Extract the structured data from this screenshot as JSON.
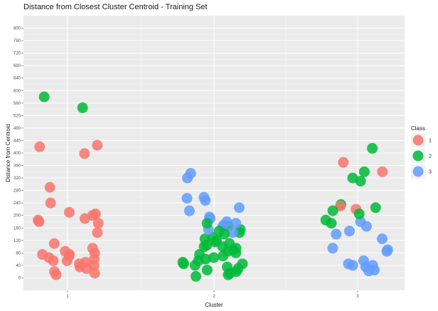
{
  "chart_data": {
    "type": "scatter",
    "title": "Distance from Closest Cluster Centroid - Training Set",
    "xlabel": "Cluster",
    "ylabel": "Distance from Centroid",
    "categories": [
      "1",
      "2",
      "3"
    ],
    "ylim": [
      -40,
      840
    ],
    "yticks": [
      0,
      40,
      80,
      120,
      160,
      200,
      240,
      280,
      320,
      360,
      400,
      440,
      480,
      520,
      560,
      600,
      640,
      680,
      720,
      760,
      800
    ],
    "grid": true,
    "legend": {
      "title": "Class",
      "position": "right"
    },
    "series": [
      {
        "name": "1",
        "color": "#F8766D",
        "points": [
          {
            "x": 1,
            "y": 425
          },
          {
            "x": 1,
            "y": 420
          },
          {
            "x": 1,
            "y": 398
          },
          {
            "x": 1,
            "y": 290
          },
          {
            "x": 1,
            "y": 240
          },
          {
            "x": 1,
            "y": 210
          },
          {
            "x": 1,
            "y": 200
          },
          {
            "x": 1,
            "y": 205
          },
          {
            "x": 1,
            "y": 190
          },
          {
            "x": 1,
            "y": 185
          },
          {
            "x": 1,
            "y": 180
          },
          {
            "x": 1,
            "y": 175
          },
          {
            "x": 1,
            "y": 145
          },
          {
            "x": 1,
            "y": 110
          },
          {
            "x": 1,
            "y": 95
          },
          {
            "x": 1,
            "y": 85
          },
          {
            "x": 1,
            "y": 80
          },
          {
            "x": 1,
            "y": 75
          },
          {
            "x": 1,
            "y": 75
          },
          {
            "x": 1,
            "y": 70
          },
          {
            "x": 1,
            "y": 65
          },
          {
            "x": 1,
            "y": 60
          },
          {
            "x": 1,
            "y": 55
          },
          {
            "x": 1,
            "y": 55
          },
          {
            "x": 1,
            "y": 50
          },
          {
            "x": 1,
            "y": 45
          },
          {
            "x": 1,
            "y": 40
          },
          {
            "x": 1,
            "y": 35
          },
          {
            "x": 1,
            "y": 30
          },
          {
            "x": 1,
            "y": 20
          },
          {
            "x": 1,
            "y": 15
          },
          {
            "x": 1,
            "y": 10
          },
          {
            "x": 3,
            "y": 370
          },
          {
            "x": 3,
            "y": 340
          },
          {
            "x": 3,
            "y": 230
          },
          {
            "x": 3,
            "y": 220
          }
        ]
      },
      {
        "name": "2",
        "color": "#00BA38",
        "points": [
          {
            "x": 1,
            "y": 580
          },
          {
            "x": 1,
            "y": 545
          },
          {
            "x": 2,
            "y": 175
          },
          {
            "x": 2,
            "y": 165
          },
          {
            "x": 2,
            "y": 155
          },
          {
            "x": 2,
            "y": 150
          },
          {
            "x": 2,
            "y": 145
          },
          {
            "x": 2,
            "y": 140
          },
          {
            "x": 2,
            "y": 130
          },
          {
            "x": 2,
            "y": 125
          },
          {
            "x": 2,
            "y": 120
          },
          {
            "x": 2,
            "y": 115
          },
          {
            "x": 2,
            "y": 110
          },
          {
            "x": 2,
            "y": 105
          },
          {
            "x": 2,
            "y": 100
          },
          {
            "x": 2,
            "y": 100
          },
          {
            "x": 2,
            "y": 95
          },
          {
            "x": 2,
            "y": 90
          },
          {
            "x": 2,
            "y": 85
          },
          {
            "x": 2,
            "y": 80
          },
          {
            "x": 2,
            "y": 75
          },
          {
            "x": 2,
            "y": 70
          },
          {
            "x": 2,
            "y": 65
          },
          {
            "x": 2,
            "y": 60
          },
          {
            "x": 2,
            "y": 55
          },
          {
            "x": 2,
            "y": 50
          },
          {
            "x": 2,
            "y": 45
          },
          {
            "x": 2,
            "y": 45
          },
          {
            "x": 2,
            "y": 40
          },
          {
            "x": 2,
            "y": 35
          },
          {
            "x": 2,
            "y": 30
          },
          {
            "x": 2,
            "y": 25
          },
          {
            "x": 2,
            "y": 20
          },
          {
            "x": 2,
            "y": 15
          },
          {
            "x": 2,
            "y": 10
          },
          {
            "x": 2,
            "y": 5
          },
          {
            "x": 3,
            "y": 415
          },
          {
            "x": 3,
            "y": 340
          },
          {
            "x": 3,
            "y": 320
          },
          {
            "x": 3,
            "y": 310
          },
          {
            "x": 3,
            "y": 235
          },
          {
            "x": 3,
            "y": 225
          },
          {
            "x": 3,
            "y": 215
          },
          {
            "x": 3,
            "y": 205
          },
          {
            "x": 3,
            "y": 185
          },
          {
            "x": 3,
            "y": 175
          }
        ]
      },
      {
        "name": "3",
        "color": "#619CFF",
        "points": [
          {
            "x": 2,
            "y": 335
          },
          {
            "x": 2,
            "y": 320
          },
          {
            "x": 2,
            "y": 258
          },
          {
            "x": 2,
            "y": 255
          },
          {
            "x": 2,
            "y": 248
          },
          {
            "x": 2,
            "y": 225
          },
          {
            "x": 2,
            "y": 215
          },
          {
            "x": 2,
            "y": 195
          },
          {
            "x": 2,
            "y": 190
          },
          {
            "x": 2,
            "y": 180
          },
          {
            "x": 2,
            "y": 175
          },
          {
            "x": 2,
            "y": 170
          },
          {
            "x": 2,
            "y": 165
          },
          {
            "x": 2,
            "y": 155
          },
          {
            "x": 2,
            "y": 145
          },
          {
            "x": 3,
            "y": 180
          },
          {
            "x": 3,
            "y": 165
          },
          {
            "x": 3,
            "y": 150
          },
          {
            "x": 3,
            "y": 140
          },
          {
            "x": 3,
            "y": 125
          },
          {
            "x": 3,
            "y": 95
          },
          {
            "x": 3,
            "y": 90
          },
          {
            "x": 3,
            "y": 85
          },
          {
            "x": 3,
            "y": 55
          },
          {
            "x": 3,
            "y": 45
          },
          {
            "x": 3,
            "y": 40
          },
          {
            "x": 3,
            "y": 40
          },
          {
            "x": 3,
            "y": 35
          },
          {
            "x": 3,
            "y": 25
          },
          {
            "x": 3,
            "y": 22
          }
        ]
      }
    ]
  }
}
